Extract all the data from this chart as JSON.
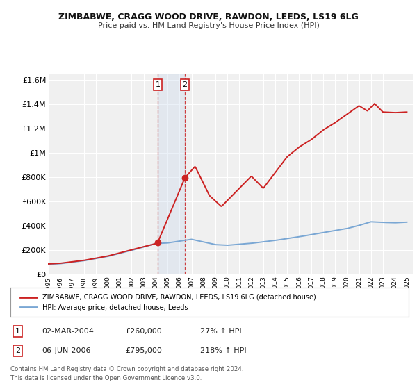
{
  "title": "ZIMBABWE, CRAGG WOOD DRIVE, RAWDON, LEEDS, LS19 6LG",
  "subtitle": "Price paid vs. HM Land Registry's House Price Index (HPI)",
  "ylim": [
    0,
    1650000
  ],
  "yticks": [
    0,
    200000,
    400000,
    600000,
    800000,
    1000000,
    1200000,
    1400000,
    1600000
  ],
  "ytick_labels": [
    "£0",
    "£200K",
    "£400K",
    "£600K",
    "£800K",
    "£1M",
    "£1.2M",
    "£1.4M",
    "£1.6M"
  ],
  "hpi_color": "#7aa7d4",
  "price_color": "#cc2222",
  "sale1_year": 2004.17,
  "sale1_price": 260000,
  "sale2_year": 2006.45,
  "sale2_price": 795000,
  "legend_price_label": "ZIMBABWE, CRAGG WOOD DRIVE, RAWDON, LEEDS, LS19 6LG (detached house)",
  "legend_hpi_label": "HPI: Average price, detached house, Leeds",
  "table_row1": [
    "1",
    "02-MAR-2004",
    "£260,000",
    "27% ↑ HPI"
  ],
  "table_row2": [
    "2",
    "06-JUN-2006",
    "£795,000",
    "218% ↑ HPI"
  ],
  "footnote1": "Contains HM Land Registry data © Crown copyright and database right 2024.",
  "footnote2": "This data is licensed under the Open Government Licence v3.0.",
  "background_color": "#ffffff",
  "plot_bg_color": "#f0f0f0",
  "grid_color": "#ffffff",
  "shade_color": "#c8d8ec"
}
